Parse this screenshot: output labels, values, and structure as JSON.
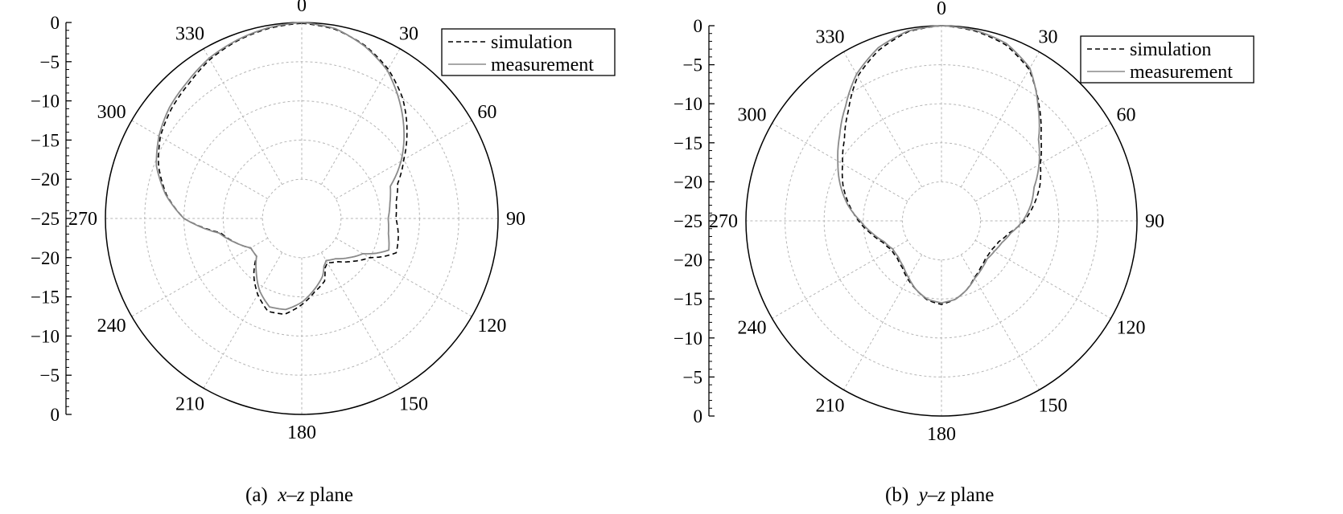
{
  "chart_data": [
    {
      "type": "polar-line",
      "caption": {
        "tag": "(a)",
        "plane": "x–z",
        "suffix": "plane"
      },
      "radial_scale_labels": [
        "0",
        "−5",
        "−10",
        "−15",
        "−20",
        "−25",
        "−20",
        "−15",
        "−10",
        "−5",
        "0"
      ],
      "radial_range_db": [
        -25,
        0
      ],
      "radial_step_db": 5,
      "angle_labels": [
        "0",
        "30",
        "60",
        "90",
        "120",
        "150",
        "180",
        "210",
        "240",
        "270",
        "300",
        "330"
      ],
      "angle_direction": "clockwise, 0 at top",
      "grid": true,
      "legend": {
        "placement": "top-right",
        "items": [
          "simulation",
          "measurement"
        ]
      },
      "series": [
        {
          "name": "simulation",
          "style": "dashed",
          "color": "#000000",
          "angles_deg": [
            0,
            10,
            20,
            30,
            40,
            50,
            60,
            70,
            80,
            90,
            100,
            110,
            115,
            120,
            130,
            140,
            150,
            155,
            160,
            170,
            180,
            190,
            200,
            210,
            220,
            230,
            240,
            250,
            260,
            270,
            280,
            290,
            300,
            310,
            320,
            330,
            340,
            350
          ],
          "values_db": [
            -0.1,
            -0.5,
            -1.5,
            -3,
            -5,
            -7.5,
            -10,
            -12,
            -12.8,
            -13,
            -12.5,
            -12.2,
            -13.5,
            -15,
            -16.5,
            -17.8,
            -18.5,
            -18,
            -16.5,
            -15.5,
            -14,
            -12.6,
            -12.4,
            -13.8,
            -15.5,
            -17.5,
            -17.5,
            -16,
            -14.5,
            -10,
            -7.5,
            -5.6,
            -4.2,
            -3.3,
            -2.6,
            -1.6,
            -0.9,
            -0.4
          ]
        },
        {
          "name": "measurement",
          "style": "solid",
          "color": "#8a8a8a",
          "angles_deg": [
            0,
            10,
            20,
            30,
            40,
            50,
            60,
            70,
            80,
            90,
            100,
            110,
            115,
            120,
            130,
            140,
            150,
            155,
            160,
            170,
            180,
            190,
            200,
            210,
            220,
            230,
            240,
            250,
            260,
            270,
            280,
            290,
            300,
            310,
            320,
            330,
            340,
            350
          ],
          "values_db": [
            0,
            -0.4,
            -1.6,
            -3.2,
            -5.6,
            -8,
            -10.4,
            -13,
            -13.6,
            -14,
            -13.8,
            -13.2,
            -14.5,
            -16,
            -17.2,
            -18.3,
            -18.8,
            -18.3,
            -17.2,
            -15.8,
            -14.3,
            -13.2,
            -13,
            -14.3,
            -16,
            -17.5,
            -17.5,
            -16,
            -14.3,
            -10,
            -7.4,
            -5.3,
            -4,
            -3,
            -2.3,
            -1.4,
            -0.8,
            -0.3
          ]
        }
      ]
    },
    {
      "type": "polar-line",
      "caption": {
        "tag": "(b)",
        "plane": "y–z",
        "suffix": "plane"
      },
      "radial_scale_labels": [
        "0",
        "−5",
        "−10",
        "−15",
        "−20",
        "−25",
        "−20",
        "−15",
        "−10",
        "−5",
        "0"
      ],
      "radial_range_db": [
        -25,
        0
      ],
      "radial_step_db": 5,
      "angle_labels": [
        "0",
        "30",
        "60",
        "90",
        "120",
        "150",
        "180",
        "210",
        "240",
        "270",
        "300",
        "330"
      ],
      "angle_direction": "clockwise, 0 at top",
      "grid": true,
      "legend": {
        "placement": "top-right",
        "items": [
          "simulation",
          "measurement"
        ]
      },
      "series": [
        {
          "name": "simulation",
          "style": "dashed",
          "color": "#000000",
          "angles_deg": [
            0,
            10,
            20,
            30,
            40,
            50,
            60,
            70,
            80,
            90,
            100,
            110,
            120,
            130,
            140,
            150,
            160,
            170,
            180,
            190,
            200,
            210,
            220,
            230,
            240,
            250,
            260,
            270,
            280,
            290,
            300,
            310,
            320,
            330,
            340,
            350
          ],
          "values_db": [
            0,
            -0.3,
            -1,
            -2.6,
            -5.6,
            -8.4,
            -10.4,
            -11.6,
            -13,
            -14.4,
            -16.2,
            -17.2,
            -17.6,
            -17.6,
            -17.2,
            -16.6,
            -15.6,
            -14.8,
            -14.3,
            -14.7,
            -15.6,
            -16.4,
            -17.2,
            -17.6,
            -17.6,
            -17,
            -15.8,
            -14.4,
            -13,
            -11.6,
            -10.4,
            -8.8,
            -6.5,
            -3.6,
            -1.7,
            -0.4
          ]
        },
        {
          "name": "measurement",
          "style": "solid",
          "color": "#8a8a8a",
          "angles_deg": [
            0,
            10,
            20,
            30,
            40,
            50,
            60,
            70,
            80,
            90,
            100,
            110,
            120,
            130,
            140,
            150,
            160,
            170,
            180,
            190,
            200,
            210,
            220,
            230,
            240,
            250,
            260,
            270,
            280,
            290,
            300,
            310,
            320,
            330,
            340,
            350
          ],
          "values_db": [
            0,
            -0.2,
            -0.8,
            -2.4,
            -5.8,
            -8.8,
            -10.6,
            -12.4,
            -13.4,
            -14.6,
            -16,
            -16.8,
            -17.2,
            -17.4,
            -17,
            -16.5,
            -15.6,
            -14.8,
            -14.5,
            -14.8,
            -15.6,
            -16.6,
            -17.4,
            -17.8,
            -17.8,
            -17.2,
            -16,
            -14.6,
            -12.8,
            -11.2,
            -9.7,
            -8,
            -5.9,
            -3.3,
            -1.4,
            -0.3
          ]
        }
      ]
    }
  ]
}
